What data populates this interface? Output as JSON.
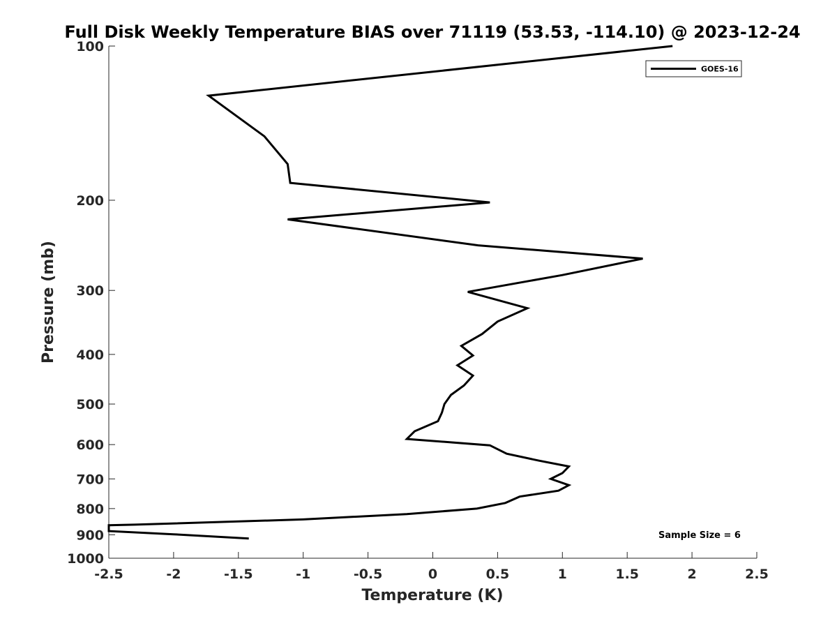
{
  "chart_data": {
    "type": "line",
    "title": "Full Disk Weekly Temperature BIAS over 71119 (53.53, -114.10) @ 2023-12-24",
    "xlabel": "Temperature (K)",
    "ylabel": "Pressure (mb)",
    "xlim": [
      -2.5,
      2.5
    ],
    "ylim": [
      1000,
      100
    ],
    "y_scale": "log",
    "x_ticks": [
      "-2.5",
      "-2",
      "-1.5",
      "-1",
      "-0.5",
      "0",
      "0.5",
      "1",
      "1.5",
      "2",
      "2.5"
    ],
    "y_ticks": [
      "100",
      "200",
      "300",
      "400",
      "500",
      "600",
      "700",
      "800",
      "900",
      "1000"
    ],
    "grid": false,
    "legend_position": "top-right",
    "annotation": "Sample Size = 6",
    "series": [
      {
        "name": "GOES-16",
        "color": "#000000",
        "points": [
          {
            "t": 1.85,
            "p": 100
          },
          {
            "t": -1.73,
            "p": 125
          },
          {
            "t": -1.3,
            "p": 150
          },
          {
            "t": -1.12,
            "p": 170
          },
          {
            "t": -1.1,
            "p": 185
          },
          {
            "t": 0.44,
            "p": 202
          },
          {
            "t": -1.12,
            "p": 218
          },
          {
            "t": 0.35,
            "p": 245
          },
          {
            "t": 1.62,
            "p": 260
          },
          {
            "t": 1.0,
            "p": 280
          },
          {
            "t": 0.27,
            "p": 302
          },
          {
            "t": 0.73,
            "p": 325
          },
          {
            "t": 0.5,
            "p": 345
          },
          {
            "t": 0.38,
            "p": 365
          },
          {
            "t": 0.22,
            "p": 385
          },
          {
            "t": 0.31,
            "p": 402
          },
          {
            "t": 0.19,
            "p": 420
          },
          {
            "t": 0.31,
            "p": 440
          },
          {
            "t": 0.24,
            "p": 460
          },
          {
            "t": 0.14,
            "p": 480
          },
          {
            "t": 0.09,
            "p": 500
          },
          {
            "t": 0.07,
            "p": 520
          },
          {
            "t": 0.04,
            "p": 540
          },
          {
            "t": -0.14,
            "p": 565
          },
          {
            "t": -0.2,
            "p": 585
          },
          {
            "t": 0.44,
            "p": 602
          },
          {
            "t": 0.57,
            "p": 625
          },
          {
            "t": 0.82,
            "p": 645
          },
          {
            "t": 1.05,
            "p": 662
          },
          {
            "t": 1.0,
            "p": 682
          },
          {
            "t": 0.91,
            "p": 700
          },
          {
            "t": 1.05,
            "p": 720
          },
          {
            "t": 0.97,
            "p": 738
          },
          {
            "t": 0.67,
            "p": 758
          },
          {
            "t": 0.56,
            "p": 780
          },
          {
            "t": 0.34,
            "p": 800
          },
          {
            "t": -0.2,
            "p": 820
          },
          {
            "t": -1.0,
            "p": 840
          },
          {
            "t": -2.3,
            "p": 860
          },
          {
            "t": -2.5,
            "p": 862
          },
          {
            "t": -2.5,
            "p": 885
          },
          {
            "t": -2.0,
            "p": 898
          },
          {
            "t": -1.42,
            "p": 915
          }
        ]
      }
    ]
  }
}
